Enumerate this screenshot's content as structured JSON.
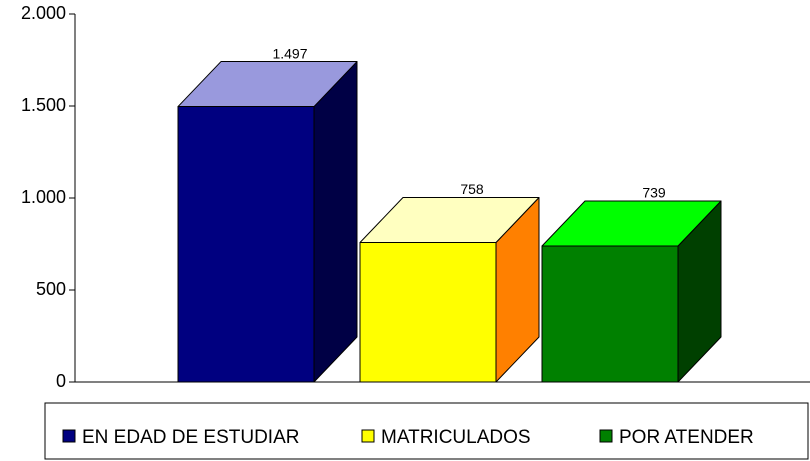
{
  "chart_data": {
    "type": "bar3d",
    "series": [
      {
        "name": "EN EDAD DE ESTUDIAR",
        "color": "#000080",
        "top_color": "#9999dd",
        "side_color": "#000045",
        "values": [
          1497
        ],
        "value_labels": [
          "1.497"
        ]
      },
      {
        "name": "MATRICULADOS",
        "color": "#ffff00",
        "top_color": "#ffffc0",
        "side_color": "#ff8000",
        "values": [
          758
        ],
        "value_labels": [
          "758"
        ]
      },
      {
        "name": "POR ATENDER",
        "color": "#008000",
        "top_color": "#00ff00",
        "side_color": "#004000",
        "values": [
          739
        ],
        "value_labels": [
          "739"
        ]
      }
    ],
    "ylim": [
      0,
      2000
    ],
    "yticks": [
      0,
      500,
      {
        "value": 1000,
        "label": "1.000"
      },
      {
        "value": 1500,
        "label": "1.500"
      },
      {
        "value": 2000,
        "label": "2.000"
      }
    ],
    "legend": "bottom"
  }
}
